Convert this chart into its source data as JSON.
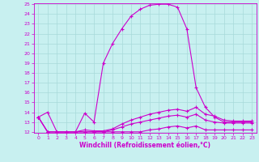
{
  "xlabel": "Windchill (Refroidissement éolien,°C)",
  "bg_color": "#c8f0f0",
  "grid_color": "#a8dada",
  "line_color": "#cc00cc",
  "hours": [
    0,
    1,
    2,
    3,
    4,
    5,
    6,
    7,
    8,
    9,
    10,
    11,
    12,
    13,
    14,
    15,
    16,
    17,
    18,
    19,
    20,
    21,
    22,
    23
  ],
  "line1": [
    13.5,
    14.0,
    12.0,
    12.0,
    12.0,
    13.9,
    13.0,
    19.0,
    21.0,
    22.5,
    23.8,
    24.5,
    24.9,
    25.0,
    25.0,
    24.7,
    22.5,
    16.5,
    14.5,
    13.5,
    13.0,
    13.0,
    13.0,
    13.0
  ],
  "line2": [
    13.5,
    12.0,
    12.0,
    12.0,
    12.0,
    12.2,
    12.1,
    12.1,
    12.3,
    12.8,
    13.2,
    13.5,
    13.8,
    14.0,
    14.2,
    14.3,
    14.1,
    14.5,
    13.8,
    13.6,
    13.2,
    13.1,
    13.1,
    13.1
  ],
  "line3": [
    13.5,
    12.0,
    12.0,
    12.0,
    12.0,
    12.0,
    12.0,
    12.0,
    12.2,
    12.5,
    12.8,
    13.0,
    13.2,
    13.4,
    13.6,
    13.7,
    13.5,
    13.8,
    13.2,
    13.0,
    12.9,
    12.9,
    12.9,
    12.9
  ],
  "line4": [
    13.5,
    12.0,
    12.0,
    12.0,
    12.0,
    12.0,
    12.0,
    12.0,
    12.0,
    12.0,
    12.0,
    12.0,
    12.2,
    12.3,
    12.5,
    12.6,
    12.4,
    12.6,
    12.2,
    12.2,
    12.2,
    12.2,
    12.2,
    12.2
  ],
  "ylim": [
    12,
    25
  ],
  "xlim": [
    -0.5,
    23.5
  ],
  "yticks": [
    12,
    13,
    14,
    15,
    16,
    17,
    18,
    19,
    20,
    21,
    22,
    23,
    24,
    25
  ],
  "xticks": [
    0,
    1,
    2,
    3,
    4,
    5,
    6,
    7,
    8,
    9,
    10,
    11,
    12,
    13,
    14,
    15,
    16,
    17,
    18,
    19,
    20,
    21,
    22,
    23
  ]
}
